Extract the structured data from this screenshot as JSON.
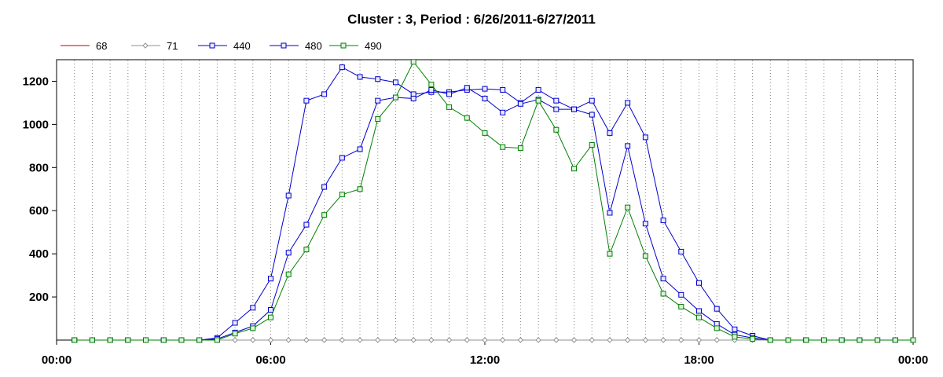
{
  "chart_data": {
    "type": "line",
    "title": "Cluster : 3, Period : 6/26/2011-6/27/2011",
    "xlabel": "",
    "ylabel": "",
    "x_tick_labels": [
      "00:00",
      "06:00",
      "12:00",
      "18:00",
      "00:00"
    ],
    "x_ticks_hours": [
      0,
      6,
      12,
      18,
      24
    ],
    "xlim_hours": [
      0,
      24
    ],
    "y_ticks": [
      200,
      400,
      600,
      800,
      1000,
      1200
    ],
    "ylim": [
      0,
      1300
    ],
    "grid": "vertical dotted lines every 30 minutes",
    "legend_position": "top-left",
    "x_hours": [
      0.5,
      1,
      1.5,
      2,
      2.5,
      3,
      3.5,
      4,
      4.5,
      5,
      5.5,
      6,
      6.5,
      7,
      7.5,
      8,
      8.5,
      9,
      9.5,
      10,
      10.5,
      11,
      11.5,
      12,
      12.5,
      13,
      13.5,
      14,
      14.5,
      15,
      15.5,
      16,
      16.5,
      17,
      17.5,
      18,
      18.5,
      19,
      19.5,
      20,
      20.5,
      21,
      21.5,
      22,
      22.5,
      23,
      23.5,
      24
    ],
    "series": [
      {
        "name": "68",
        "color": "#c00000",
        "marker": "none",
        "values": [
          0,
          0,
          0,
          0,
          0,
          0,
          0,
          0,
          0,
          0,
          0,
          0,
          0,
          0,
          0,
          0,
          0,
          0,
          0,
          0,
          0,
          0,
          0,
          0,
          0,
          0,
          0,
          0,
          0,
          0,
          0,
          0,
          0,
          0,
          0,
          0,
          0,
          0,
          0,
          0,
          0,
          0,
          0,
          0,
          0,
          0,
          0,
          0
        ]
      },
      {
        "name": "71",
        "color": "#909090",
        "marker": "diamond",
        "values": [
          0,
          0,
          0,
          0,
          0,
          0,
          0,
          0,
          0,
          0,
          0,
          0,
          0,
          0,
          0,
          0,
          0,
          0,
          0,
          0,
          0,
          0,
          0,
          0,
          0,
          0,
          0,
          0,
          0,
          0,
          0,
          0,
          0,
          0,
          0,
          0,
          0,
          0,
          0,
          0,
          0,
          0,
          0,
          0,
          0,
          0,
          0,
          0
        ]
      },
      {
        "name": "440",
        "color": "#0000cc",
        "marker": "square",
        "values": [
          0,
          0,
          0,
          0,
          0,
          0,
          0,
          0,
          10,
          80,
          150,
          285,
          670,
          1110,
          1140,
          1265,
          1220,
          1210,
          1195,
          1140,
          1150,
          1150,
          1160,
          1165,
          1160,
          1100,
          1160,
          1110,
          1070,
          1110,
          960,
          1100,
          940,
          555,
          410,
          265,
          145,
          50,
          20,
          0,
          0,
          0,
          0,
          0,
          0,
          0,
          0,
          0
        ]
      },
      {
        "name": "480",
        "color": "#0000cc",
        "marker": "square",
        "values": [
          0,
          0,
          0,
          0,
          0,
          0,
          0,
          0,
          5,
          35,
          65,
          140,
          405,
          535,
          710,
          845,
          885,
          1110,
          1125,
          1120,
          1160,
          1140,
          1170,
          1120,
          1055,
          1095,
          1115,
          1070,
          1070,
          1045,
          590,
          900,
          540,
          285,
          210,
          135,
          75,
          25,
          10,
          0,
          0,
          0,
          0,
          0,
          0,
          0,
          0,
          0
        ]
      },
      {
        "name": "490",
        "color": "#008000",
        "marker": "square",
        "values": [
          0,
          0,
          0,
          0,
          0,
          0,
          0,
          0,
          0,
          30,
          55,
          105,
          305,
          420,
          580,
          675,
          700,
          1025,
          1125,
          1290,
          1185,
          1080,
          1030,
          960,
          895,
          890,
          1110,
          975,
          795,
          905,
          400,
          615,
          390,
          215,
          155,
          105,
          55,
          15,
          5,
          0,
          0,
          0,
          0,
          0,
          0,
          0,
          0,
          0
        ]
      }
    ]
  }
}
